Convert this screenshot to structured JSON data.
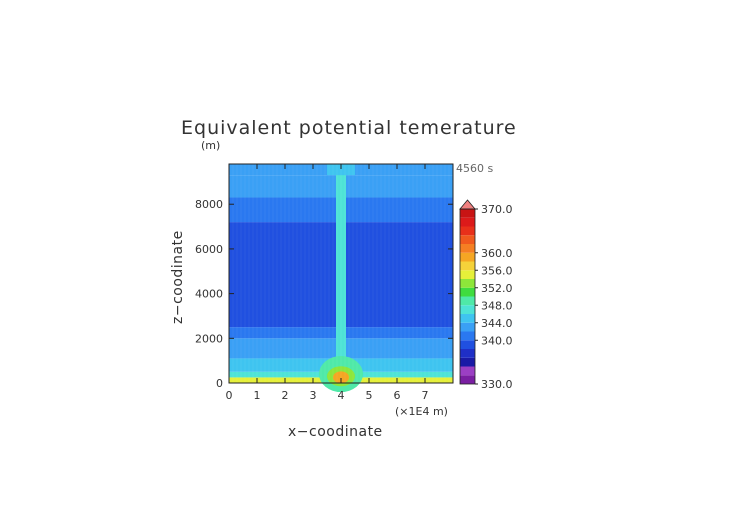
{
  "chart_data": {
    "type": "heatmap",
    "title": "Equivalent potential temerature",
    "time_label": "4560 s",
    "xlabel": "x−coodinate",
    "ylabel": "z−coodinate",
    "x_unit": "(×1E4 m)",
    "y_unit": "(m)",
    "xlim": [
      0,
      8
    ],
    "ylim": [
      0,
      9800
    ],
    "x_ticks": [
      "0",
      "1",
      "2",
      "3",
      "4",
      "5",
      "6",
      "7"
    ],
    "y_ticks": [
      "0",
      "2000",
      "4000",
      "6000",
      "8000"
    ],
    "colorbar": {
      "min": 330,
      "max": 370,
      "tick_labels": [
        "330.0",
        "340.0",
        "344.0",
        "348.0",
        "352.0",
        "356.0",
        "360.0",
        "370.0"
      ],
      "level_colors": [
        "#7a1fa2",
        "#9b3fc4",
        "#1a1aa6",
        "#1f2fc7",
        "#2050e0",
        "#2a78f0",
        "#3aa0f5",
        "#3fc4f0",
        "#4ee3d6",
        "#4fe9a8",
        "#3fdc3f",
        "#8ee63a",
        "#e6f03a",
        "#f5d23a",
        "#f5a623",
        "#f57f23",
        "#f05a1e",
        "#e8301a",
        "#dc1a1a",
        "#c81414",
        "#f08080"
      ]
    },
    "field_description": {
      "layers": [
        {
          "z_bottom": 0,
          "z_top": 250,
          "value": 354
        },
        {
          "z_bottom": 250,
          "z_top": 500,
          "value": 347
        },
        {
          "z_bottom": 500,
          "z_top": 1100,
          "value": 345
        },
        {
          "z_bottom": 1100,
          "z_top": 2000,
          "value": 343
        },
        {
          "z_bottom": 2000,
          "z_top": 2500,
          "value": 341
        },
        {
          "z_bottom": 2500,
          "z_top": 7200,
          "value": 339.5
        },
        {
          "z_bottom": 7200,
          "z_top": 8300,
          "value": 341
        },
        {
          "z_bottom": 8300,
          "z_top": 9300,
          "value": 342
        },
        {
          "z_bottom": 9300,
          "z_top": 9800,
          "value": 343
        }
      ],
      "plume_center_x": 4.0,
      "plume_value_aloft": 346,
      "plume_base_max": 358
    }
  }
}
